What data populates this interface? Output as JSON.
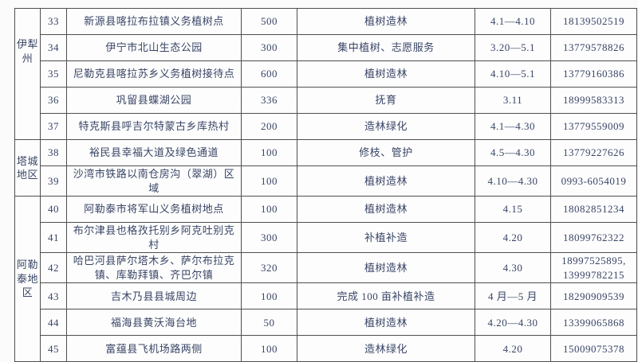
{
  "table": {
    "colors": {
      "text": "#394566",
      "border": "#4f4f4f",
      "background": "#fdfdfd"
    },
    "region_groups": [
      {
        "label": "伊犁州",
        "row_start": 0,
        "row_count": 5
      },
      {
        "label": "塔城地区",
        "row_start": 5,
        "row_count": 2
      },
      {
        "label": "阿勒泰地区",
        "row_start": 7,
        "row_count": 6
      }
    ],
    "rows": [
      {
        "no": "33",
        "location": "新源县喀拉布拉镇义务植树点",
        "amount": "500",
        "activity": "植树造林",
        "date": "4.1—4.10",
        "phone": "18139502519"
      },
      {
        "no": "34",
        "location": "伊宁市北山生态公园",
        "amount": "300",
        "activity": "集中植树、志愿服务",
        "date": "3.20—5.1",
        "phone": "13779578826"
      },
      {
        "no": "35",
        "location": "尼勒克县喀拉苏乡义务植树接待点",
        "amount": "600",
        "activity": "植树造林",
        "date": "4.10—5.1",
        "phone": "13779160386"
      },
      {
        "no": "36",
        "location": "巩留县蝶湖公园",
        "amount": "336",
        "activity": "抚育",
        "date": "3.11",
        "phone": "18999583313"
      },
      {
        "no": "37",
        "location": "特克斯县呼吉尔特蒙古乡库热村",
        "amount": "200",
        "activity": "造林绿化",
        "date": "4.1—4.30",
        "phone": "13779559009"
      },
      {
        "no": "38",
        "location": "裕民县幸福大道及绿色通道",
        "amount": "100",
        "activity": "修枝、管护",
        "date": "4.5—4.30",
        "phone": "13779227626"
      },
      {
        "no": "39",
        "location": "沙湾市铁路以南仓房沟（翠湖）区域",
        "amount": "100",
        "activity": "植树造林",
        "date": "4.10—4.30",
        "phone": "0993-6054019"
      },
      {
        "no": "40",
        "location": "阿勒泰市将军山义务植树地点",
        "amount": "100",
        "activity": "植树造林",
        "date": "4.15",
        "phone": "18082851234"
      },
      {
        "no": "41",
        "location": "布尔津县也格孜托别乡阿克吐别克村",
        "amount": "300",
        "activity": "补植补造",
        "date": "4.20",
        "phone": "18099762322"
      },
      {
        "no": "42",
        "location": "哈巴河县萨尔塔木乡、萨尔布拉克镇、库勒拜镇、齐巴尔镇",
        "amount": "320",
        "activity": "植树造林",
        "date": "4.30",
        "phone": "18997525895,\n13999782215",
        "tall": true
      },
      {
        "no": "43",
        "location": "吉木乃县县城周边",
        "amount": "100",
        "activity": "完成 100 亩补植补造",
        "date": "4 月—5 月",
        "phone": "18290909539"
      },
      {
        "no": "44",
        "location": "福海县黄沃海台地",
        "amount": "50",
        "activity": "植树造林",
        "date": "4.20—4.30",
        "phone": "13399065868"
      },
      {
        "no": "45",
        "location": "富蕴县飞机场路两侧",
        "amount": "100",
        "activity": "造林绿化",
        "date": "4.20",
        "phone": "15009075378"
      }
    ]
  }
}
